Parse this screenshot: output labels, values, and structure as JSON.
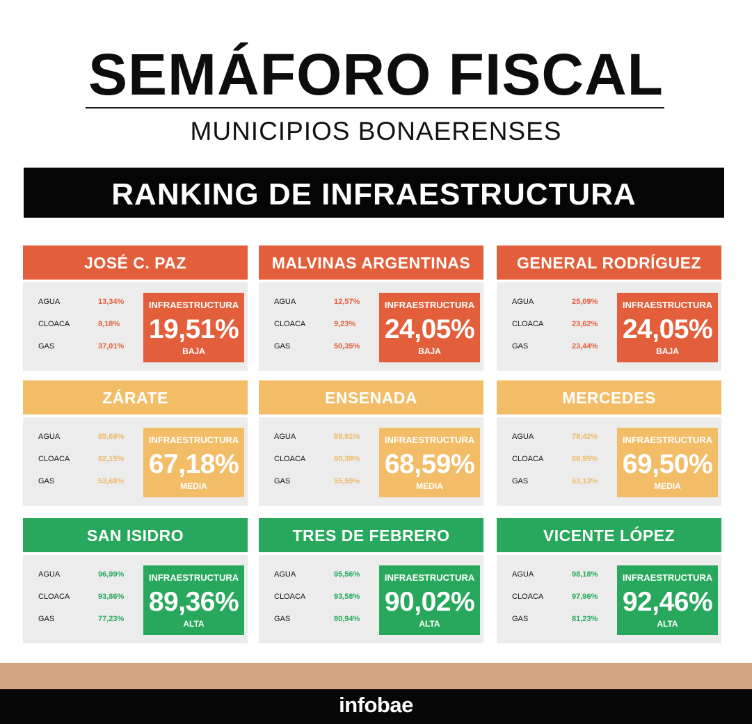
{
  "header": {
    "title": "SEMÁFORO FISCAL",
    "subtitle": "MUNICIPIOS BONAERENSES",
    "section": "RANKING DE INFRAESTRUCTURA"
  },
  "colors": {
    "baja": "#e35e3a",
    "media": "#f3bd68",
    "alta": "#27a85c"
  },
  "cards": [
    {
      "name": "JOSÉ C. PAZ",
      "agua_label": "AGUA",
      "agua": "13,34%",
      "cloaca_label": "CLOACA",
      "cloaca": "8,18%",
      "gas_label": "GAS",
      "gas": "37,01%",
      "box_caption": "INFRAESTRUCTURA",
      "infra": "19,51%",
      "level": "BAJA"
    },
    {
      "name": "MALVINAS ARGENTINAS",
      "agua_label": "AGUA",
      "agua": "12,57%",
      "cloaca_label": "CLOACA",
      "cloaca": "9,23%",
      "gas_label": "GAS",
      "gas": "50,35%",
      "box_caption": "INFRAESTRUCTURA",
      "infra": "24,05%",
      "level": "BAJA"
    },
    {
      "name": "GENERAL RODRÍGUEZ",
      "agua_label": "AGUA",
      "agua": "25,09%",
      "cloaca_label": "CLOACA",
      "cloaca": "23,62%",
      "gas_label": "GAS",
      "gas": "23,44%",
      "box_caption": "INFRAESTRUCTURA",
      "infra": "24,05%",
      "level": "BAJA"
    },
    {
      "name": "ZÁRATE",
      "agua_label": "AGUA",
      "agua": "85,69%",
      "cloaca_label": "CLOACA",
      "cloaca": "62,15%",
      "gas_label": "GAS",
      "gas": "53,68%",
      "box_caption": "INFRAESTRUCTURA",
      "infra": "67,18%",
      "level": "MEDIA"
    },
    {
      "name": "ENSENADA",
      "agua_label": "AGUA",
      "agua": "89,81%",
      "cloaca_label": "CLOACA",
      "cloaca": "60,38%",
      "gas_label": "GAS",
      "gas": "55,59%",
      "box_caption": "INFRAESTRUCTURA",
      "infra": "68,59%",
      "level": "MEDIA"
    },
    {
      "name": "MERCEDES",
      "agua_label": "AGUA",
      "agua": "78,42%",
      "cloaca_label": "CLOACA",
      "cloaca": "66,95%",
      "gas_label": "GAS",
      "gas": "63,13%",
      "box_caption": "INFRAESTRUCTURA",
      "infra": "69,50%",
      "level": "MEDIA"
    },
    {
      "name": "SAN ISIDRO",
      "agua_label": "AGUA",
      "agua": "96,99%",
      "cloaca_label": "CLOACA",
      "cloaca": "93,86%",
      "gas_label": "GAS",
      "gas": "77,23%",
      "box_caption": "INFRAESTRUCTURA",
      "infra": "89,36%",
      "level": "ALTA"
    },
    {
      "name": "TRES DE FEBRERO",
      "agua_label": "AGUA",
      "agua": "95,56%",
      "cloaca_label": "CLOACA",
      "cloaca": "93,58%",
      "gas_label": "GAS",
      "gas": "80,94%",
      "box_caption": "INFRAESTRUCTURA",
      "infra": "90,02%",
      "level": "ALTA"
    },
    {
      "name": "VICENTE LÓPEZ",
      "agua_label": "AGUA",
      "agua": "98,18%",
      "cloaca_label": "CLOACA",
      "cloaca": "97,96%",
      "gas_label": "GAS",
      "gas": "81,23%",
      "box_caption": "INFRAESTRUCTURA",
      "infra": "92,46%",
      "level": "ALTA"
    }
  ],
  "footer": {
    "logo": "infobae"
  }
}
